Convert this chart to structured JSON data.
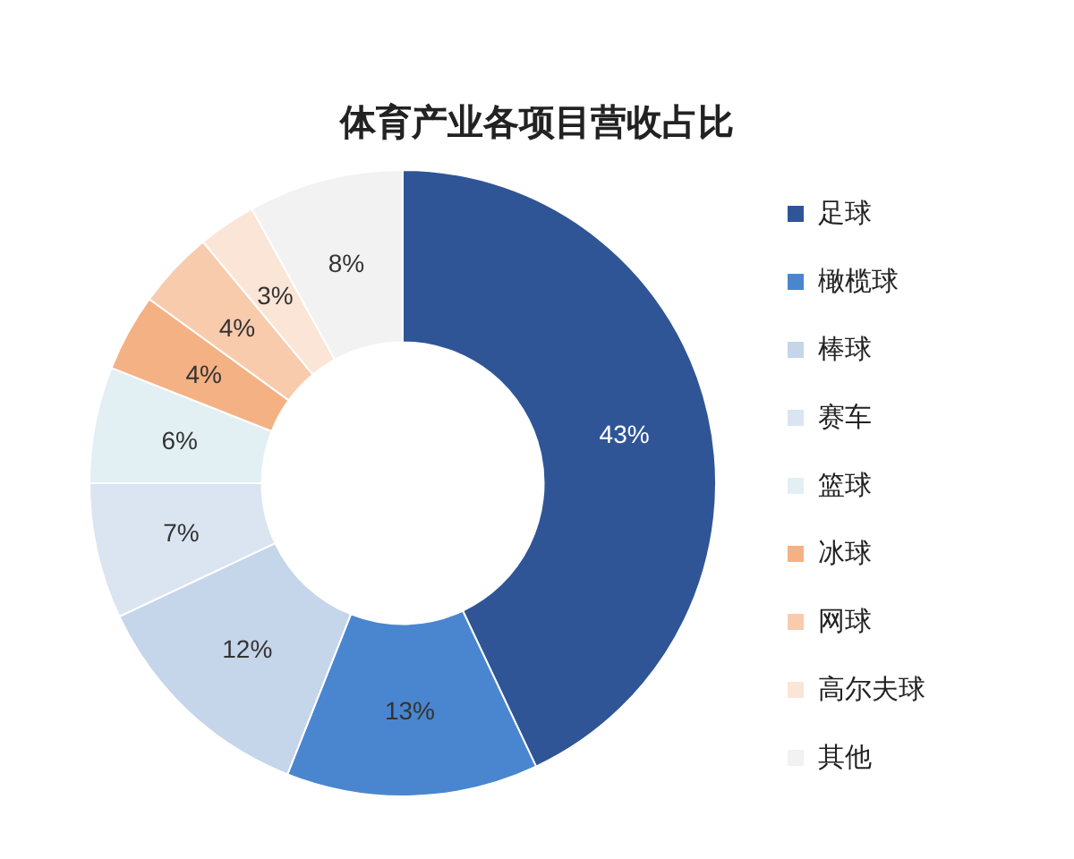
{
  "chart_data": {
    "type": "donut",
    "title": "体育产业各项目营收占比",
    "categories": [
      "足球",
      "橄榄球",
      "棒球",
      "赛车",
      "篮球",
      "冰球",
      "网球",
      "高尔夫球",
      "其他"
    ],
    "values": [
      43,
      13,
      12,
      7,
      6,
      4,
      4,
      3,
      8
    ],
    "colors": [
      "#2f5597",
      "#4a86d0",
      "#c5d5ea",
      "#dbe4f1",
      "#e2eff3",
      "#f4b183",
      "#f8cbad",
      "#fbe5d6",
      "#f2f2f2"
    ],
    "value_labels": [
      "43%",
      "13%",
      "12%",
      "7%",
      "6%",
      "4%",
      "4%",
      "3%",
      "8%"
    ],
    "legend": "right"
  }
}
